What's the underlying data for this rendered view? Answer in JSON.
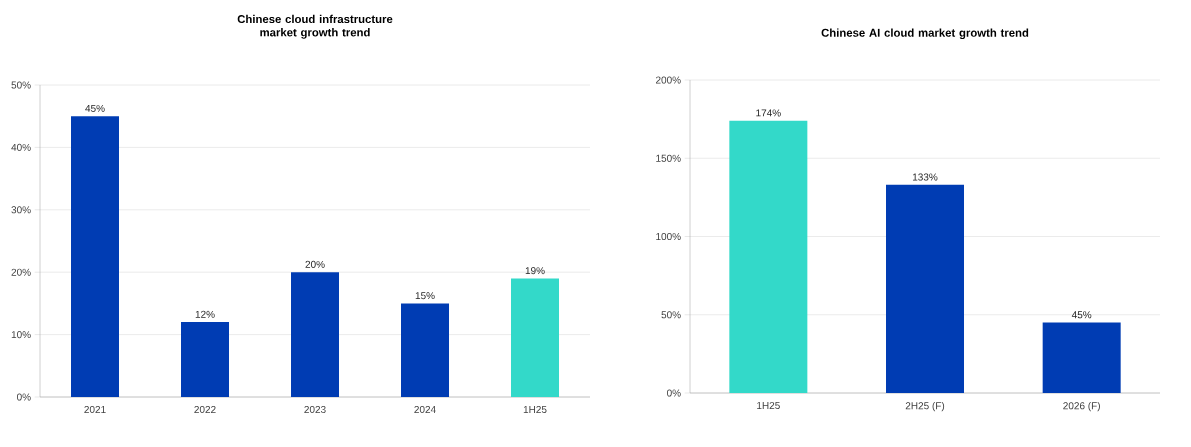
{
  "chart_data": [
    {
      "type": "bar",
      "title": "Chinese cloud infrastructure market growth trend",
      "categories": [
        "2021",
        "2022",
        "2023",
        "2024",
        "1H25"
      ],
      "values": [
        45,
        12,
        20,
        15,
        19
      ],
      "value_labels": [
        "45%",
        "12%",
        "20%",
        "15%",
        "19%"
      ],
      "colors": [
        "#003cb3",
        "#003cb3",
        "#003cb3",
        "#003cb3",
        "#33d9c9"
      ],
      "ylim": [
        0,
        50
      ],
      "yticks": [
        {
          "value": 0,
          "label": "0%"
        },
        {
          "value": 10,
          "label": "10%"
        },
        {
          "value": 20,
          "label": "20%"
        },
        {
          "value": 30,
          "label": "30%"
        },
        {
          "value": 40,
          "label": "40%"
        },
        {
          "value": 50,
          "label": "50%"
        }
      ],
      "grid": "y"
    },
    {
      "type": "bar",
      "title": "Chinese AI cloud market growth trend",
      "categories": [
        "1H25",
        "2H25 (F)",
        "2026 (F)"
      ],
      "values": [
        174,
        133,
        45
      ],
      "value_labels": [
        "174%",
        "133%",
        "45%"
      ],
      "colors": [
        "#33d9c9",
        "#003cb3",
        "#003cb3"
      ],
      "ylim": [
        0,
        200
      ],
      "yticks": [
        {
          "value": 0,
          "label": "0%"
        },
        {
          "value": 50,
          "label": "50%"
        },
        {
          "value": 100,
          "label": "100%"
        },
        {
          "value": 150,
          "label": "150%"
        },
        {
          "value": 200,
          "label": "200%"
        }
      ],
      "grid": "y"
    }
  ]
}
